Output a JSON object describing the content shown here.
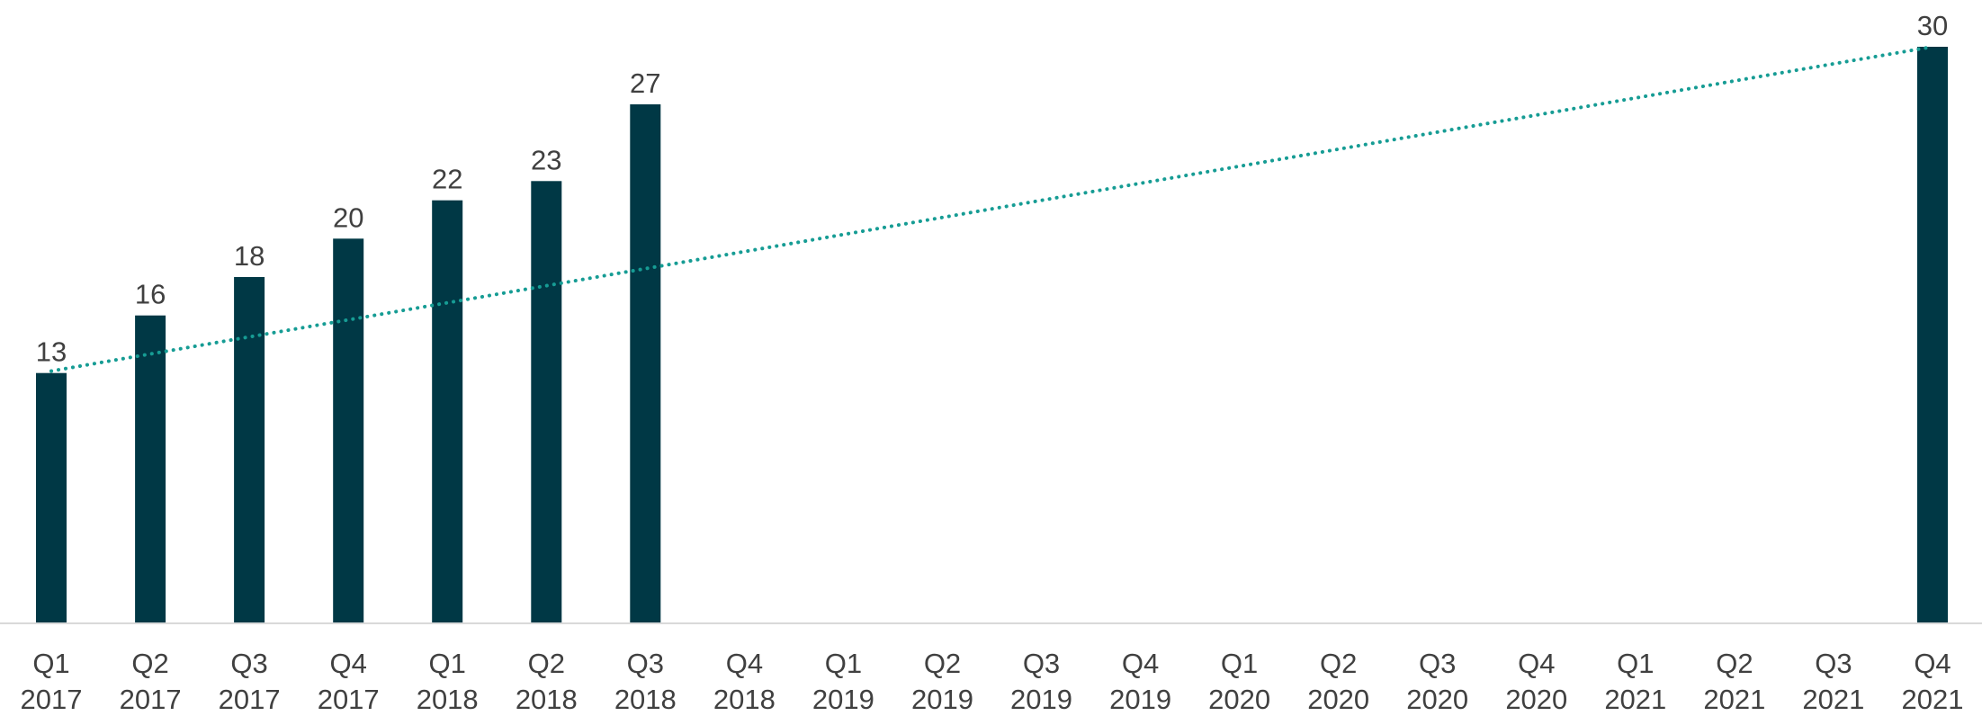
{
  "chart_data": {
    "type": "bar",
    "categories": [
      [
        "Q1",
        "2017"
      ],
      [
        "Q2",
        "2017"
      ],
      [
        "Q3",
        "2017"
      ],
      [
        "Q4",
        "2017"
      ],
      [
        "Q1",
        "2018"
      ],
      [
        "Q2",
        "2018"
      ],
      [
        "Q3",
        "2018"
      ],
      [
        "Q4",
        "2018"
      ],
      [
        "Q1",
        "2019"
      ],
      [
        "Q2",
        "2019"
      ],
      [
        "Q3",
        "2019"
      ],
      [
        "Q4",
        "2019"
      ],
      [
        "Q1",
        "2020"
      ],
      [
        "Q2",
        "2020"
      ],
      [
        "Q3",
        "2020"
      ],
      [
        "Q4",
        "2020"
      ],
      [
        "Q1",
        "2021"
      ],
      [
        "Q2",
        "2021"
      ],
      [
        "Q3",
        "2021"
      ],
      [
        "Q4",
        "2021"
      ]
    ],
    "values": [
      13,
      16,
      18,
      20,
      22,
      23,
      27,
      null,
      null,
      null,
      null,
      null,
      null,
      null,
      null,
      null,
      null,
      null,
      null,
      30
    ],
    "data_labels": [
      "13",
      "16",
      "18",
      "20",
      "22",
      "23",
      "27",
      "",
      "",
      "",
      "",
      "",
      "",
      "",
      "",
      "",
      "",
      "",
      "",
      "30"
    ],
    "trendline": {
      "style": "dotted",
      "type": "linear",
      "start_category_index": 0,
      "end_category_index": 19,
      "start_value": 13.1,
      "end_value": 30
    },
    "ylim": [
      0,
      30
    ],
    "title": "",
    "xlabel": "",
    "ylabel": "",
    "grid": false,
    "legend": "none",
    "colors": {
      "bar": "#003845",
      "trendline": "#169C94",
      "axis": "#D9D9D9",
      "text": "#404040"
    }
  }
}
